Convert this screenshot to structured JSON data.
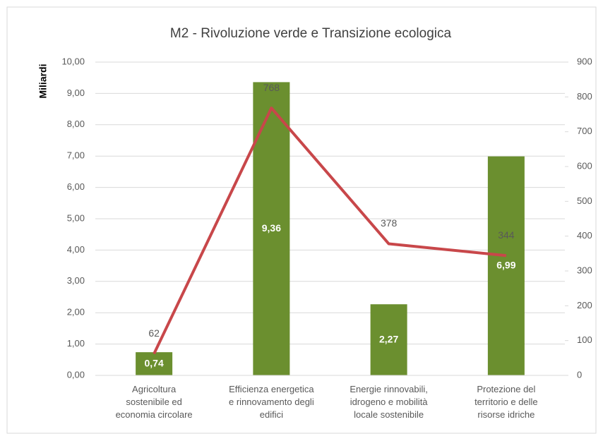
{
  "chart_data": {
    "type": "bar_line",
    "title": "M2 - Rivoluzione verde e Transizione ecologica",
    "y_label": "Miliardi",
    "categories": [
      "Agricoltura\nsostenibile ed\neconomia circolare",
      "Efficienza energetica\ne rinnovamento degli\nedifici",
      "Energie rinnovabili,\nidrogeno e mobilità\nlocale sostenibile",
      "Protezione del\nterritorio e delle\nrisorse idriche"
    ],
    "series": [
      {
        "type": "bar",
        "color": "#6b8f2f",
        "values": [
          0.74,
          9.36,
          2.27,
          6.99
        ],
        "value_labels": [
          "0,74",
          "9,36",
          "2,27",
          "6,99"
        ]
      },
      {
        "type": "line",
        "axis": "y2",
        "color": "#c8474a",
        "values": [
          62,
          768,
          378,
          344
        ]
      }
    ],
    "ylim": [
      0,
      10
    ],
    "yticks": [
      {
        "value": 0,
        "label": "0,00"
      },
      {
        "value": 1,
        "label": "1,00"
      },
      {
        "value": 2,
        "label": "2,00"
      },
      {
        "value": 3,
        "label": "3,00"
      },
      {
        "value": 4,
        "label": "4,00"
      },
      {
        "value": 5,
        "label": "5,00"
      },
      {
        "value": 6,
        "label": "6,00"
      },
      {
        "value": 7,
        "label": "7,00"
      },
      {
        "value": 8,
        "label": "8,00"
      },
      {
        "value": 9,
        "label": "9,00"
      },
      {
        "value": 10,
        "label": "10,00"
      }
    ],
    "y2lim": [
      0,
      900
    ],
    "y2ticks": [
      0,
      100,
      200,
      300,
      400,
      500,
      600,
      700,
      800,
      900
    ],
    "grid": true
  }
}
